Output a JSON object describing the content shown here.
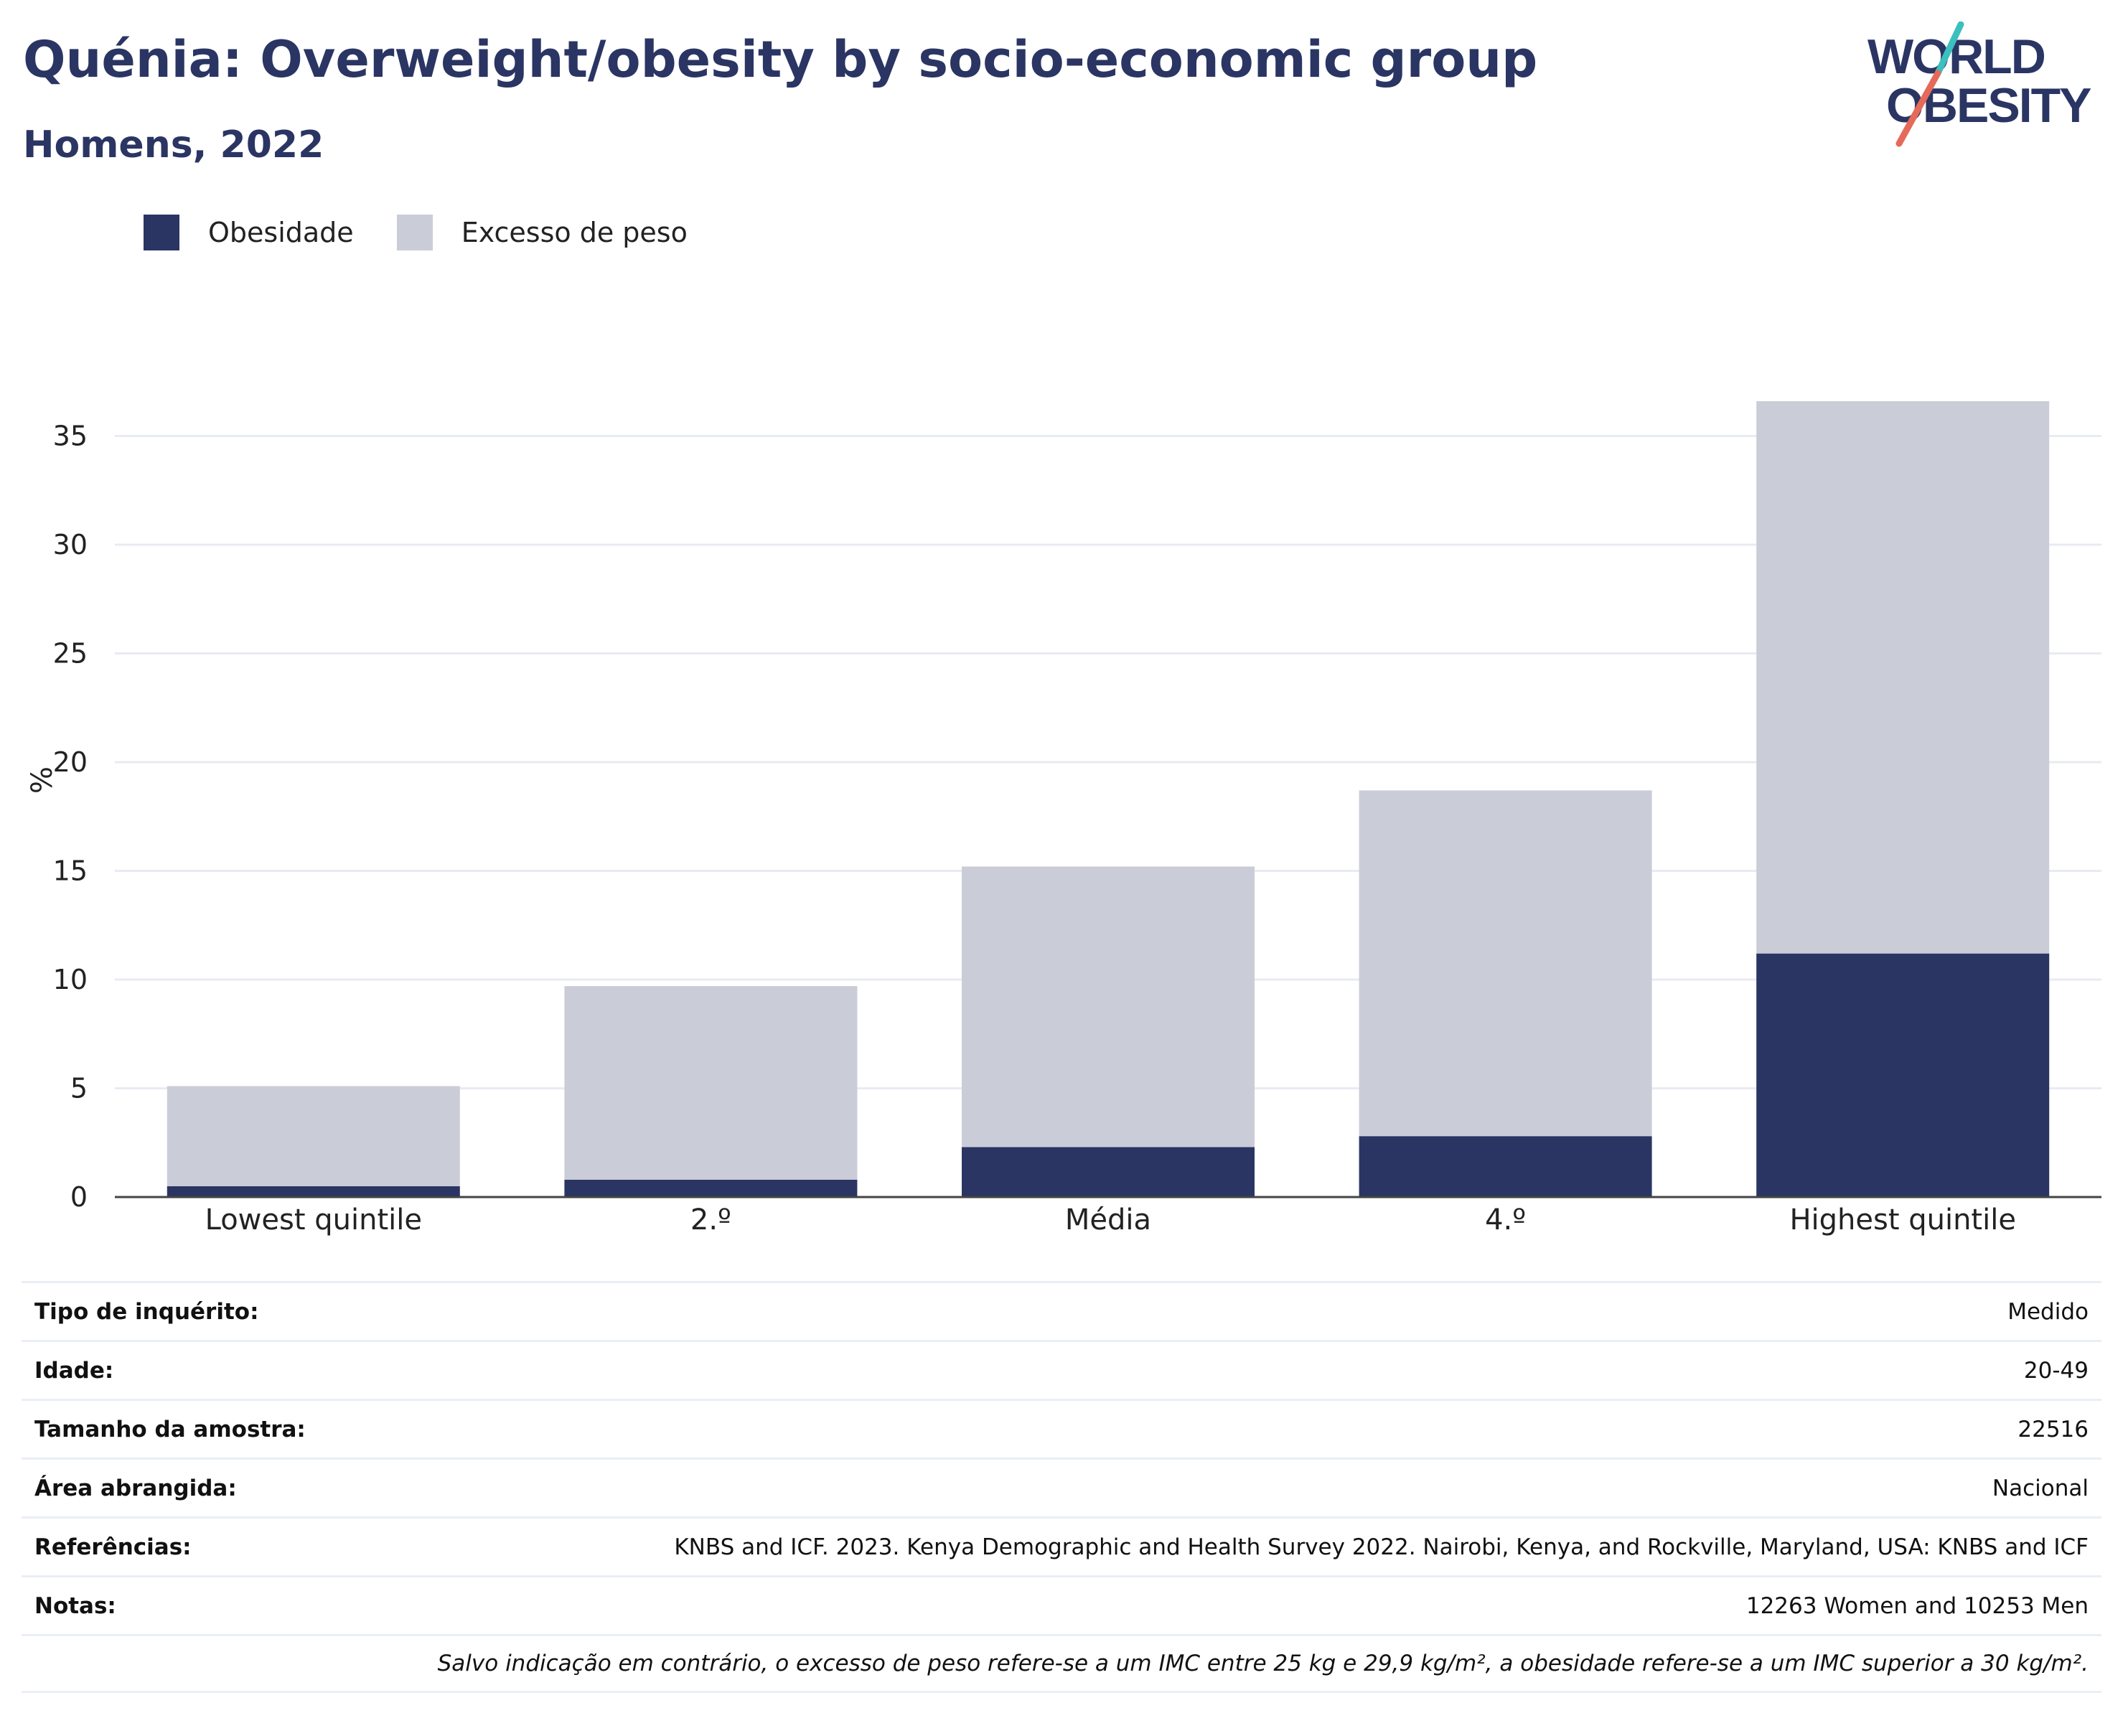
{
  "header": {
    "title": "Quénia: Overweight/obesity by socio-economic group",
    "subtitle": "Homens, 2022"
  },
  "logo": {
    "line1": "WORLD",
    "line2": "OBESITY"
  },
  "colors": {
    "obesity": "#2a3563",
    "overweight": "#cacdd8",
    "title": "#2a3563",
    "grid": "#e8ebf2",
    "logo_teal": "#3bbfbf",
    "logo_coral": "#e56a5a"
  },
  "chart_data": {
    "type": "bar",
    "stacked": true,
    "title": "Quénia: Overweight/obesity by socio-economic group",
    "subtitle": "Homens, 2022",
    "ylabel": "%",
    "xlabel": "",
    "categories": [
      "Lowest quintile",
      "2.º",
      "Média",
      "4.º",
      "Highest quintile"
    ],
    "series": [
      {
        "name": "Obesidade",
        "values": [
          0.5,
          0.8,
          2.3,
          2.8,
          11.2
        ]
      },
      {
        "name": "Excesso de peso",
        "values": [
          4.6,
          8.9,
          12.9,
          15.9,
          25.4
        ]
      }
    ],
    "ylim": [
      0,
      37
    ],
    "yticks": [
      0,
      5,
      10,
      15,
      20,
      25,
      30,
      35
    ],
    "grid": true,
    "legend": "top-left"
  },
  "info_table": {
    "rows": [
      {
        "label": "Tipo de inquérito:",
        "value": "Medido"
      },
      {
        "label": "Idade:",
        "value": "20-49"
      },
      {
        "label": "Tamanho da amostra:",
        "value": "22516"
      },
      {
        "label": "Área abrangida:",
        "value": "Nacional"
      },
      {
        "label": "Referências:",
        "value": "KNBS and ICF. 2023. Kenya Demographic and Health Survey 2022. Nairobi, Kenya, and Rockville, Maryland, USA: KNBS and ICF"
      },
      {
        "label": "Notas:",
        "value": "12263 Women and 10253 Men"
      }
    ],
    "footnote": "Salvo indicação em contrário, o excesso de peso refere-se a um IMC entre 25 kg e 29,9 kg/m², a obesidade refere-se a um IMC superior a 30 kg/m²."
  }
}
